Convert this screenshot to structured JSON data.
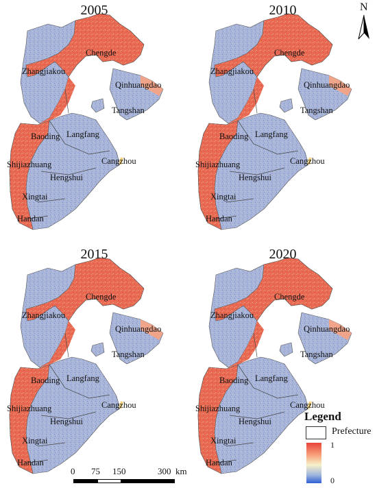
{
  "panels": [
    {
      "year": "2005"
    },
    {
      "year": "2010"
    },
    {
      "year": "2015"
    },
    {
      "year": "2020"
    }
  ],
  "cities": [
    "Chengde",
    "Zhangjiakou",
    "Qinhuangdao",
    "Tangshan",
    "Baoding",
    "Langfang",
    "Shijiazhuang",
    "Cangzhou",
    "Hengshui",
    "Xingtai",
    "Handan"
  ],
  "north_arrow": {
    "letter": "N"
  },
  "legend": {
    "title": "Legend",
    "prefecture_label": "Prefecture",
    "ramp_high": "1",
    "ramp_low": "0",
    "colors": {
      "high": "#e8443a",
      "mid": "#f6f1c8",
      "low": "#2f5fd4",
      "blue_region": "#a9b6d9",
      "red_region": "#e96a52",
      "orange_region": "#f0a48a"
    }
  },
  "scale_bar": {
    "labels": [
      "0",
      "75",
      "150",
      "300"
    ],
    "unit": "km"
  }
}
